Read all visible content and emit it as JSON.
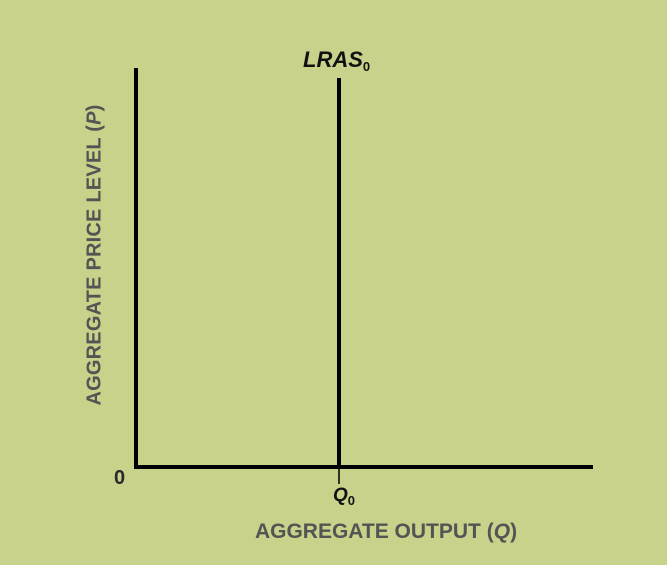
{
  "diagram": {
    "y_axis": {
      "text": "AGGREGATE PRICE LEVEL (",
      "var": "P",
      "close": ")"
    },
    "x_axis": {
      "text": "AGGREGATE OUTPUT (",
      "var": "Q",
      "close": ")"
    },
    "origin_label": "0",
    "curve": {
      "name": "LRAS",
      "sub": "0"
    },
    "tick": {
      "name": "Q",
      "sub": "0"
    }
  },
  "colors": {
    "background": "#c9d28a",
    "line": "#000000",
    "axis_text": "#545454"
  }
}
